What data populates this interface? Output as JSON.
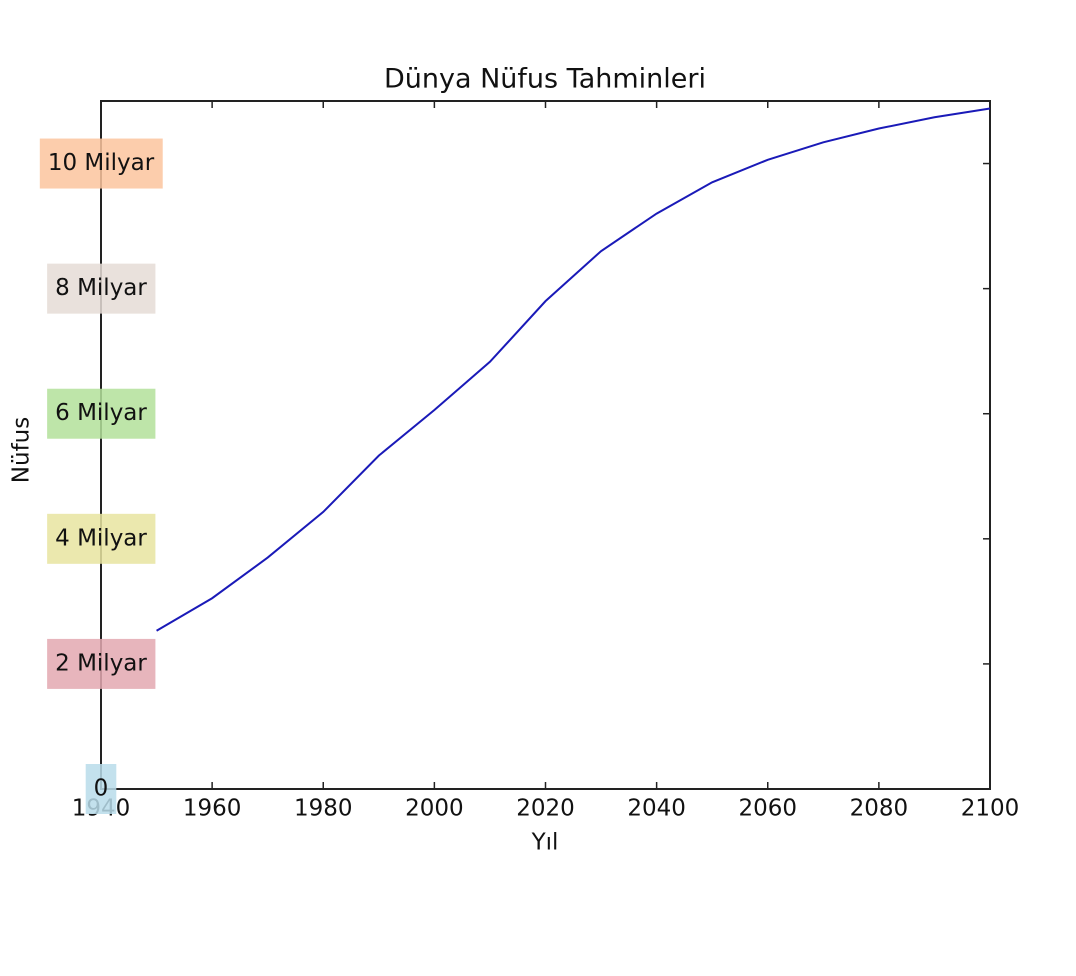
{
  "chart_data": {
    "type": "line",
    "title": "Dünya Nüfus Tahminleri",
    "xlabel": "Yıl",
    "ylabel": "Nüfus",
    "x": [
      1950,
      1960,
      1970,
      1980,
      1990,
      2000,
      2010,
      2020,
      2030,
      2040,
      2050,
      2060,
      2070,
      2080,
      2090,
      2100
    ],
    "series": [
      {
        "color": "#1a1ab8",
        "values": [
          2.53,
          3.05,
          3.7,
          4.43,
          5.33,
          6.06,
          6.83,
          7.8,
          8.6,
          9.2,
          9.7,
          10.06,
          10.34,
          10.56,
          10.74,
          10.88
        ]
      }
    ],
    "xlim": [
      1940,
      2100
    ],
    "xticks": [
      1940,
      1960,
      1980,
      2000,
      2020,
      2040,
      2060,
      2080,
      2100
    ],
    "ylim": [
      0,
      11
    ],
    "yticks": [
      {
        "value": 0,
        "label": "0",
        "color": "#b9dcea"
      },
      {
        "value": 2,
        "label": "2 Milyar",
        "color": "#e3a8b0"
      },
      {
        "value": 4,
        "label": "4 Milyar",
        "color": "#e8e4a0"
      },
      {
        "value": 6,
        "label": "6 Milyar",
        "color": "#b3e09a"
      },
      {
        "value": 8,
        "label": "8 Milyar",
        "color": "#e5dcd6"
      },
      {
        "value": 10,
        "label": "10 Milyar",
        "color": "#fbc49e"
      }
    ]
  }
}
